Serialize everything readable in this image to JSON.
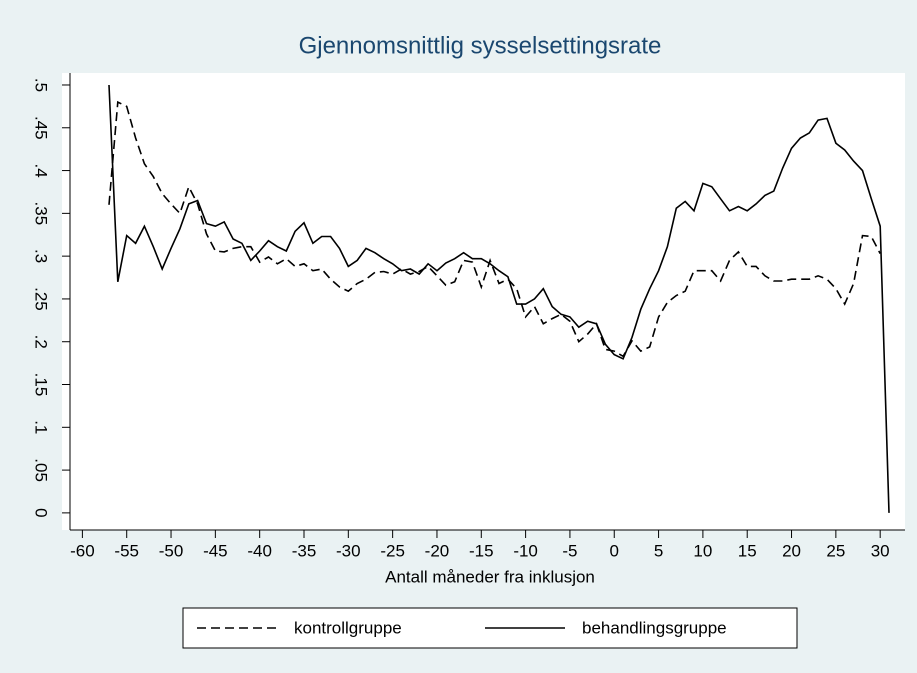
{
  "chart_data": {
    "type": "line",
    "title": "Gjennomsnittlig sysselsettingsrate",
    "xlabel": "Antall måneder fra inklusjon",
    "x": [
      -57,
      -56,
      -55,
      -54,
      -53,
      -52,
      -51,
      -50,
      -49,
      -48,
      -47,
      -46,
      -45,
      -44,
      -43,
      -42,
      -41,
      -40,
      -39,
      -38,
      -37,
      -36,
      -35,
      -34,
      -33,
      -32,
      -31,
      -30,
      -29,
      -28,
      -27,
      -26,
      -25,
      -24,
      -23,
      -22,
      -21,
      -20,
      -19,
      -18,
      -17,
      -16,
      -15,
      -14,
      -13,
      -12,
      -11,
      -10,
      -9,
      -8,
      -7,
      -6,
      -5,
      -4,
      -3,
      -2,
      -1,
      0,
      1,
      2,
      3,
      4,
      5,
      6,
      7,
      8,
      9,
      10,
      11,
      12,
      13,
      14,
      15,
      16,
      17,
      18,
      19,
      20,
      21,
      22,
      23,
      24,
      25,
      26,
      27,
      28,
      29,
      30,
      31
    ],
    "series": [
      {
        "name": "kontrollgruppe",
        "color": "#000000",
        "dash": true,
        "values": [
          0.36,
          0.48,
          0.475,
          0.438,
          0.408,
          0.393,
          0.373,
          0.361,
          0.35,
          0.381,
          0.361,
          0.326,
          0.306,
          0.305,
          0.309,
          0.311,
          0.311,
          0.293,
          0.299,
          0.291,
          0.297,
          0.288,
          0.291,
          0.283,
          0.285,
          0.273,
          0.264,
          0.259,
          0.268,
          0.273,
          0.281,
          0.282,
          0.279,
          0.285,
          0.279,
          0.282,
          0.288,
          0.277,
          0.266,
          0.27,
          0.295,
          0.293,
          0.264,
          0.295,
          0.268,
          0.273,
          0.262,
          0.229,
          0.241,
          0.221,
          0.227,
          0.232,
          0.224,
          0.2,
          0.209,
          0.221,
          0.191,
          0.189,
          0.183,
          0.201,
          0.189,
          0.194,
          0.229,
          0.246,
          0.254,
          0.259,
          0.283,
          0.283,
          0.283,
          0.271,
          0.295,
          0.305,
          0.288,
          0.288,
          0.277,
          0.271,
          0.271,
          0.273,
          0.273,
          0.273,
          0.277,
          0.273,
          0.262,
          0.244,
          0.268,
          0.324,
          0.323,
          0.303,
          null
        ]
      },
      {
        "name": "behandlingsgruppe",
        "color": "#000000",
        "dash": false,
        "values": [
          0.5,
          0.27,
          0.324,
          0.315,
          0.335,
          0.311,
          0.285,
          0.309,
          0.332,
          0.361,
          0.365,
          0.338,
          0.335,
          0.34,
          0.32,
          0.315,
          0.295,
          0.306,
          0.318,
          0.311,
          0.306,
          0.329,
          0.339,
          0.315,
          0.323,
          0.323,
          0.309,
          0.288,
          0.295,
          0.309,
          0.304,
          0.297,
          0.291,
          0.283,
          0.285,
          0.279,
          0.291,
          0.283,
          0.292,
          0.297,
          0.304,
          0.297,
          0.297,
          0.291,
          0.283,
          0.276,
          0.244,
          0.244,
          0.25,
          0.262,
          0.241,
          0.232,
          0.229,
          0.217,
          0.224,
          0.221,
          0.197,
          0.185,
          0.18,
          0.205,
          0.238,
          0.262,
          0.283,
          0.311,
          0.356,
          0.364,
          0.353,
          0.385,
          0.381,
          0.367,
          0.353,
          0.358,
          0.353,
          0.361,
          0.371,
          0.376,
          0.403,
          0.426,
          0.438,
          0.444,
          0.459,
          0.461,
          0.432,
          0.424,
          0.411,
          0.4,
          0.367,
          0.335,
          0
        ]
      }
    ],
    "xlim": [
      -62.3,
      32.8
    ],
    "xticks": [
      -60,
      -55,
      -50,
      -45,
      -40,
      -35,
      -30,
      -25,
      -20,
      -15,
      -10,
      -5,
      0,
      5,
      10,
      15,
      20,
      25,
      30
    ],
    "ylim": [
      -0.02,
      0.514
    ],
    "yticks": [
      0,
      {
        "value": 0.05,
        "label": ".05"
      },
      {
        "value": 0.1,
        "label": ".1"
      },
      {
        "value": 0.15,
        "label": ".15"
      },
      {
        "value": 0.2,
        "label": ".2"
      },
      {
        "value": 0.25,
        "label": ".25"
      },
      {
        "value": 0.3,
        "label": ".3"
      },
      {
        "value": 0.35,
        "label": ".35"
      },
      {
        "value": 0.4,
        "label": ".4"
      },
      {
        "value": 0.45,
        "label": ".45"
      },
      {
        "value": 0.5,
        "label": ".5"
      }
    ],
    "grid": false,
    "legend": "bottom"
  }
}
